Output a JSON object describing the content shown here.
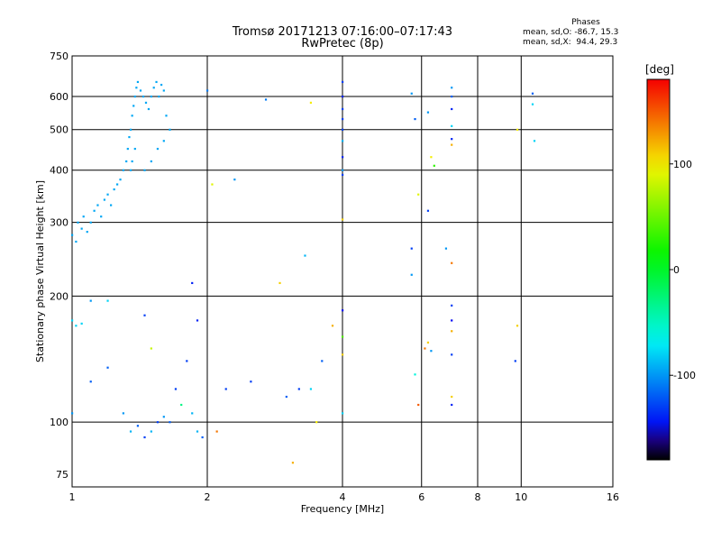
{
  "header": {
    "line1": "Tromsø 20171213 07:16:00–07:17:43",
    "line2": "RwPretec (8p)"
  },
  "stats": {
    "heading": "Phases",
    "o_line": "mean, sd,O: -86.7, 15.3",
    "x_line": "mean, sd,X:  94.4, 29.3"
  },
  "colorbar": {
    "unit": "[deg]",
    "ticks": [
      "100",
      "0",
      "-100"
    ],
    "range": [
      -180,
      180
    ]
  },
  "chart_data": {
    "type": "scatter",
    "title": "Tromsø 20171213 07:16:00–07:17:43 RwPretec (8p)",
    "xlabel": "Frequency [MHz]",
    "ylabel": "Stationary phase Virtual Height [km]",
    "xscale": "log",
    "yscale": "log",
    "xlim": [
      1,
      16
    ],
    "ylim": [
      70,
      750
    ],
    "xticks": [
      "1",
      "2",
      "4",
      "6",
      "8",
      "10",
      "16"
    ],
    "yticks": [
      "75",
      "100",
      "200",
      "300",
      "400",
      "500",
      "600",
      "750"
    ],
    "xgrid": [
      1,
      2,
      4,
      6,
      8,
      10,
      16
    ],
    "ygrid": [
      100,
      200,
      300,
      400,
      500,
      600
    ],
    "color_encoding": "phase_deg",
    "points": [
      [
        1.0,
        280,
        -95
      ],
      [
        1.02,
        270,
        -95
      ],
      [
        1.03,
        300,
        -95
      ],
      [
        1.05,
        290,
        -95
      ],
      [
        1.06,
        310,
        -95
      ],
      [
        1.08,
        285,
        -95
      ],
      [
        1.1,
        300,
        -95
      ],
      [
        1.12,
        320,
        -95
      ],
      [
        1.14,
        330,
        -95
      ],
      [
        1.16,
        310,
        -95
      ],
      [
        1.18,
        340,
        -95
      ],
      [
        1.2,
        350,
        -95
      ],
      [
        1.22,
        330,
        -95
      ],
      [
        1.24,
        360,
        -95
      ],
      [
        1.26,
        370,
        -95
      ],
      [
        1.28,
        380,
        -95
      ],
      [
        1.3,
        400,
        -95
      ],
      [
        1.32,
        420,
        -95
      ],
      [
        1.33,
        450,
        -95
      ],
      [
        1.34,
        480,
        -95
      ],
      [
        1.35,
        500,
        -95
      ],
      [
        1.36,
        540,
        -95
      ],
      [
        1.37,
        570,
        -95
      ],
      [
        1.38,
        600,
        -95
      ],
      [
        1.39,
        630,
        -95
      ],
      [
        1.4,
        650,
        -95
      ],
      [
        1.42,
        620,
        -95
      ],
      [
        1.44,
        600,
        -95
      ],
      [
        1.46,
        580,
        -95
      ],
      [
        1.48,
        560,
        -95
      ],
      [
        1.5,
        600,
        -95
      ],
      [
        1.52,
        630,
        -95
      ],
      [
        1.54,
        650,
        -95
      ],
      [
        1.56,
        600,
        -95
      ],
      [
        1.58,
        640,
        -95
      ],
      [
        1.6,
        620,
        -95
      ],
      [
        1.35,
        400,
        -95
      ],
      [
        1.36,
        420,
        -95
      ],
      [
        1.38,
        450,
        -95
      ],
      [
        1.45,
        400,
        -95
      ],
      [
        1.5,
        420,
        -95
      ],
      [
        1.55,
        450,
        -95
      ],
      [
        1.6,
        470,
        -95
      ],
      [
        1.65,
        500,
        -95
      ],
      [
        1.62,
        540,
        -95
      ],
      [
        1.0,
        175,
        -80
      ],
      [
        1.02,
        170,
        -80
      ],
      [
        1.05,
        172,
        -80
      ],
      [
        1.1,
        195,
        -100
      ],
      [
        1.2,
        195,
        -80
      ],
      [
        1.0,
        105,
        -100
      ],
      [
        1.1,
        125,
        -120
      ],
      [
        1.2,
        135,
        -120
      ],
      [
        1.3,
        105,
        -100
      ],
      [
        1.35,
        95,
        -90
      ],
      [
        1.4,
        98,
        -120
      ],
      [
        1.45,
        92,
        -130
      ],
      [
        1.5,
        95,
        -90
      ],
      [
        1.55,
        100,
        -130
      ],
      [
        1.6,
        103,
        -100
      ],
      [
        1.65,
        100,
        -120
      ],
      [
        1.7,
        120,
        -130
      ],
      [
        1.75,
        110,
        -30
      ],
      [
        1.8,
        140,
        -130
      ],
      [
        1.85,
        105,
        -90
      ],
      [
        1.9,
        95,
        -90
      ],
      [
        1.95,
        92,
        -120
      ],
      [
        1.45,
        180,
        -130
      ],
      [
        1.5,
        150,
        80
      ],
      [
        1.85,
        215,
        -140
      ],
      [
        1.9,
        175,
        -140
      ],
      [
        2.0,
        620,
        -110
      ],
      [
        2.05,
        370,
        90
      ],
      [
        2.3,
        380,
        -100
      ],
      [
        2.1,
        95,
        140
      ],
      [
        2.2,
        120,
        -130
      ],
      [
        2.5,
        125,
        -130
      ],
      [
        2.7,
        590,
        -110
      ],
      [
        2.9,
        215,
        110
      ],
      [
        3.0,
        115,
        -120
      ],
      [
        3.2,
        120,
        -130
      ],
      [
        3.3,
        250,
        -90
      ],
      [
        3.4,
        580,
        100
      ],
      [
        3.4,
        120,
        -80
      ],
      [
        3.5,
        100,
        100
      ],
      [
        3.6,
        140,
        -120
      ],
      [
        3.8,
        170,
        120
      ],
      [
        3.1,
        80,
        120
      ],
      [
        4.0,
        650,
        -130
      ],
      [
        4.0,
        600,
        -140
      ],
      [
        4.0,
        560,
        -130
      ],
      [
        4.0,
        530,
        -130
      ],
      [
        4.0,
        500,
        -130
      ],
      [
        4.0,
        470,
        -90
      ],
      [
        4.0,
        430,
        -140
      ],
      [
        4.0,
        400,
        -100
      ],
      [
        4.0,
        390,
        -130
      ],
      [
        4.0,
        305,
        110
      ],
      [
        4.0,
        185,
        -150
      ],
      [
        4.0,
        160,
        40
      ],
      [
        4.0,
        145,
        110
      ],
      [
        4.0,
        105,
        -80
      ],
      [
        5.7,
        610,
        -100
      ],
      [
        5.8,
        530,
        -120
      ],
      [
        5.9,
        350,
        90
      ],
      [
        5.7,
        260,
        -130
      ],
      [
        5.7,
        225,
        -100
      ],
      [
        5.8,
        130,
        -60
      ],
      [
        5.9,
        110,
        150
      ],
      [
        6.2,
        550,
        -100
      ],
      [
        6.3,
        430,
        100
      ],
      [
        6.4,
        410,
        30
      ],
      [
        6.2,
        320,
        -130
      ],
      [
        6.1,
        150,
        140
      ],
      [
        6.2,
        155,
        110
      ],
      [
        6.3,
        148,
        -100
      ],
      [
        6.8,
        260,
        -100
      ],
      [
        7.0,
        630,
        -100
      ],
      [
        7.0,
        600,
        -120
      ],
      [
        7.0,
        560,
        -140
      ],
      [
        7.0,
        510,
        -80
      ],
      [
        7.0,
        475,
        -140
      ],
      [
        7.0,
        460,
        120
      ],
      [
        7.0,
        240,
        140
      ],
      [
        7.0,
        190,
        -130
      ],
      [
        7.0,
        175,
        -150
      ],
      [
        7.0,
        165,
        120
      ],
      [
        7.0,
        145,
        -130
      ],
      [
        7.0,
        115,
        110
      ],
      [
        7.0,
        110,
        -140
      ],
      [
        9.7,
        140,
        -130
      ],
      [
        10.6,
        610,
        -120
      ],
      [
        10.6,
        575,
        -80
      ],
      [
        10.7,
        470,
        -80
      ],
      [
        9.8,
        170,
        110
      ],
      [
        9.8,
        500,
        100
      ]
    ]
  }
}
